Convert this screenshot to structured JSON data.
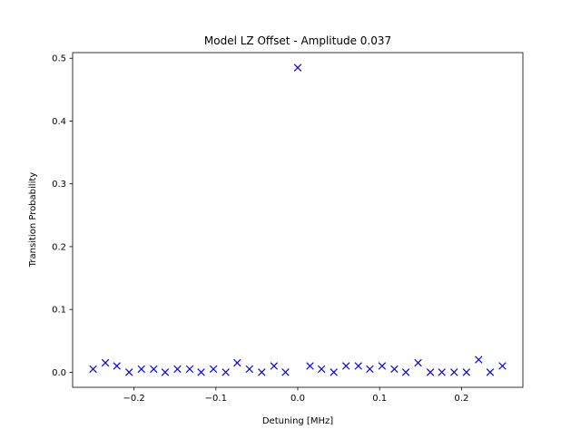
{
  "chart_data": {
    "type": "scatter",
    "title": "Model LZ Offset - Amplitude 0.037",
    "xlabel": "Detuning [MHz]",
    "ylabel": "Transition Probability",
    "xlim": [
      -0.275,
      0.275
    ],
    "ylim": [
      -0.024,
      0.509
    ],
    "xticks": [
      -0.2,
      -0.1,
      0.0,
      0.1,
      0.2
    ],
    "xtick_labels": [
      "−0.2",
      "−0.1",
      "0.0",
      "0.1",
      "0.2"
    ],
    "yticks": [
      0.0,
      0.1,
      0.2,
      0.3,
      0.4,
      0.5
    ],
    "ytick_labels": [
      "0.0",
      "0.1",
      "0.2",
      "0.3",
      "0.4",
      "0.5"
    ],
    "grid": false,
    "legend": "none",
    "marker": "x",
    "color": "#0000ff",
    "series": [
      {
        "x": [
          -0.25,
          -0.235,
          -0.221,
          -0.206,
          -0.191,
          -0.176,
          -0.162,
          -0.147,
          -0.132,
          -0.118,
          -0.103,
          -0.088,
          -0.074,
          -0.059,
          -0.044,
          -0.029,
          -0.015,
          0.0,
          0.015,
          0.029,
          0.044,
          0.059,
          0.074,
          0.088,
          0.103,
          0.118,
          0.132,
          0.147,
          0.162,
          0.176,
          0.191,
          0.206,
          0.221,
          0.235,
          0.25
        ],
        "y": [
          0.005,
          0.015,
          0.01,
          0.0,
          0.005,
          0.005,
          0.0,
          0.005,
          0.005,
          0.0,
          0.005,
          0.0,
          0.015,
          0.005,
          0.0,
          0.01,
          0.0,
          0.485,
          0.01,
          0.005,
          0.0,
          0.01,
          0.01,
          0.005,
          0.01,
          0.005,
          0.0,
          0.015,
          0.0,
          0.0,
          0.0,
          0.0,
          0.02,
          0.0,
          0.01
        ]
      }
    ]
  }
}
